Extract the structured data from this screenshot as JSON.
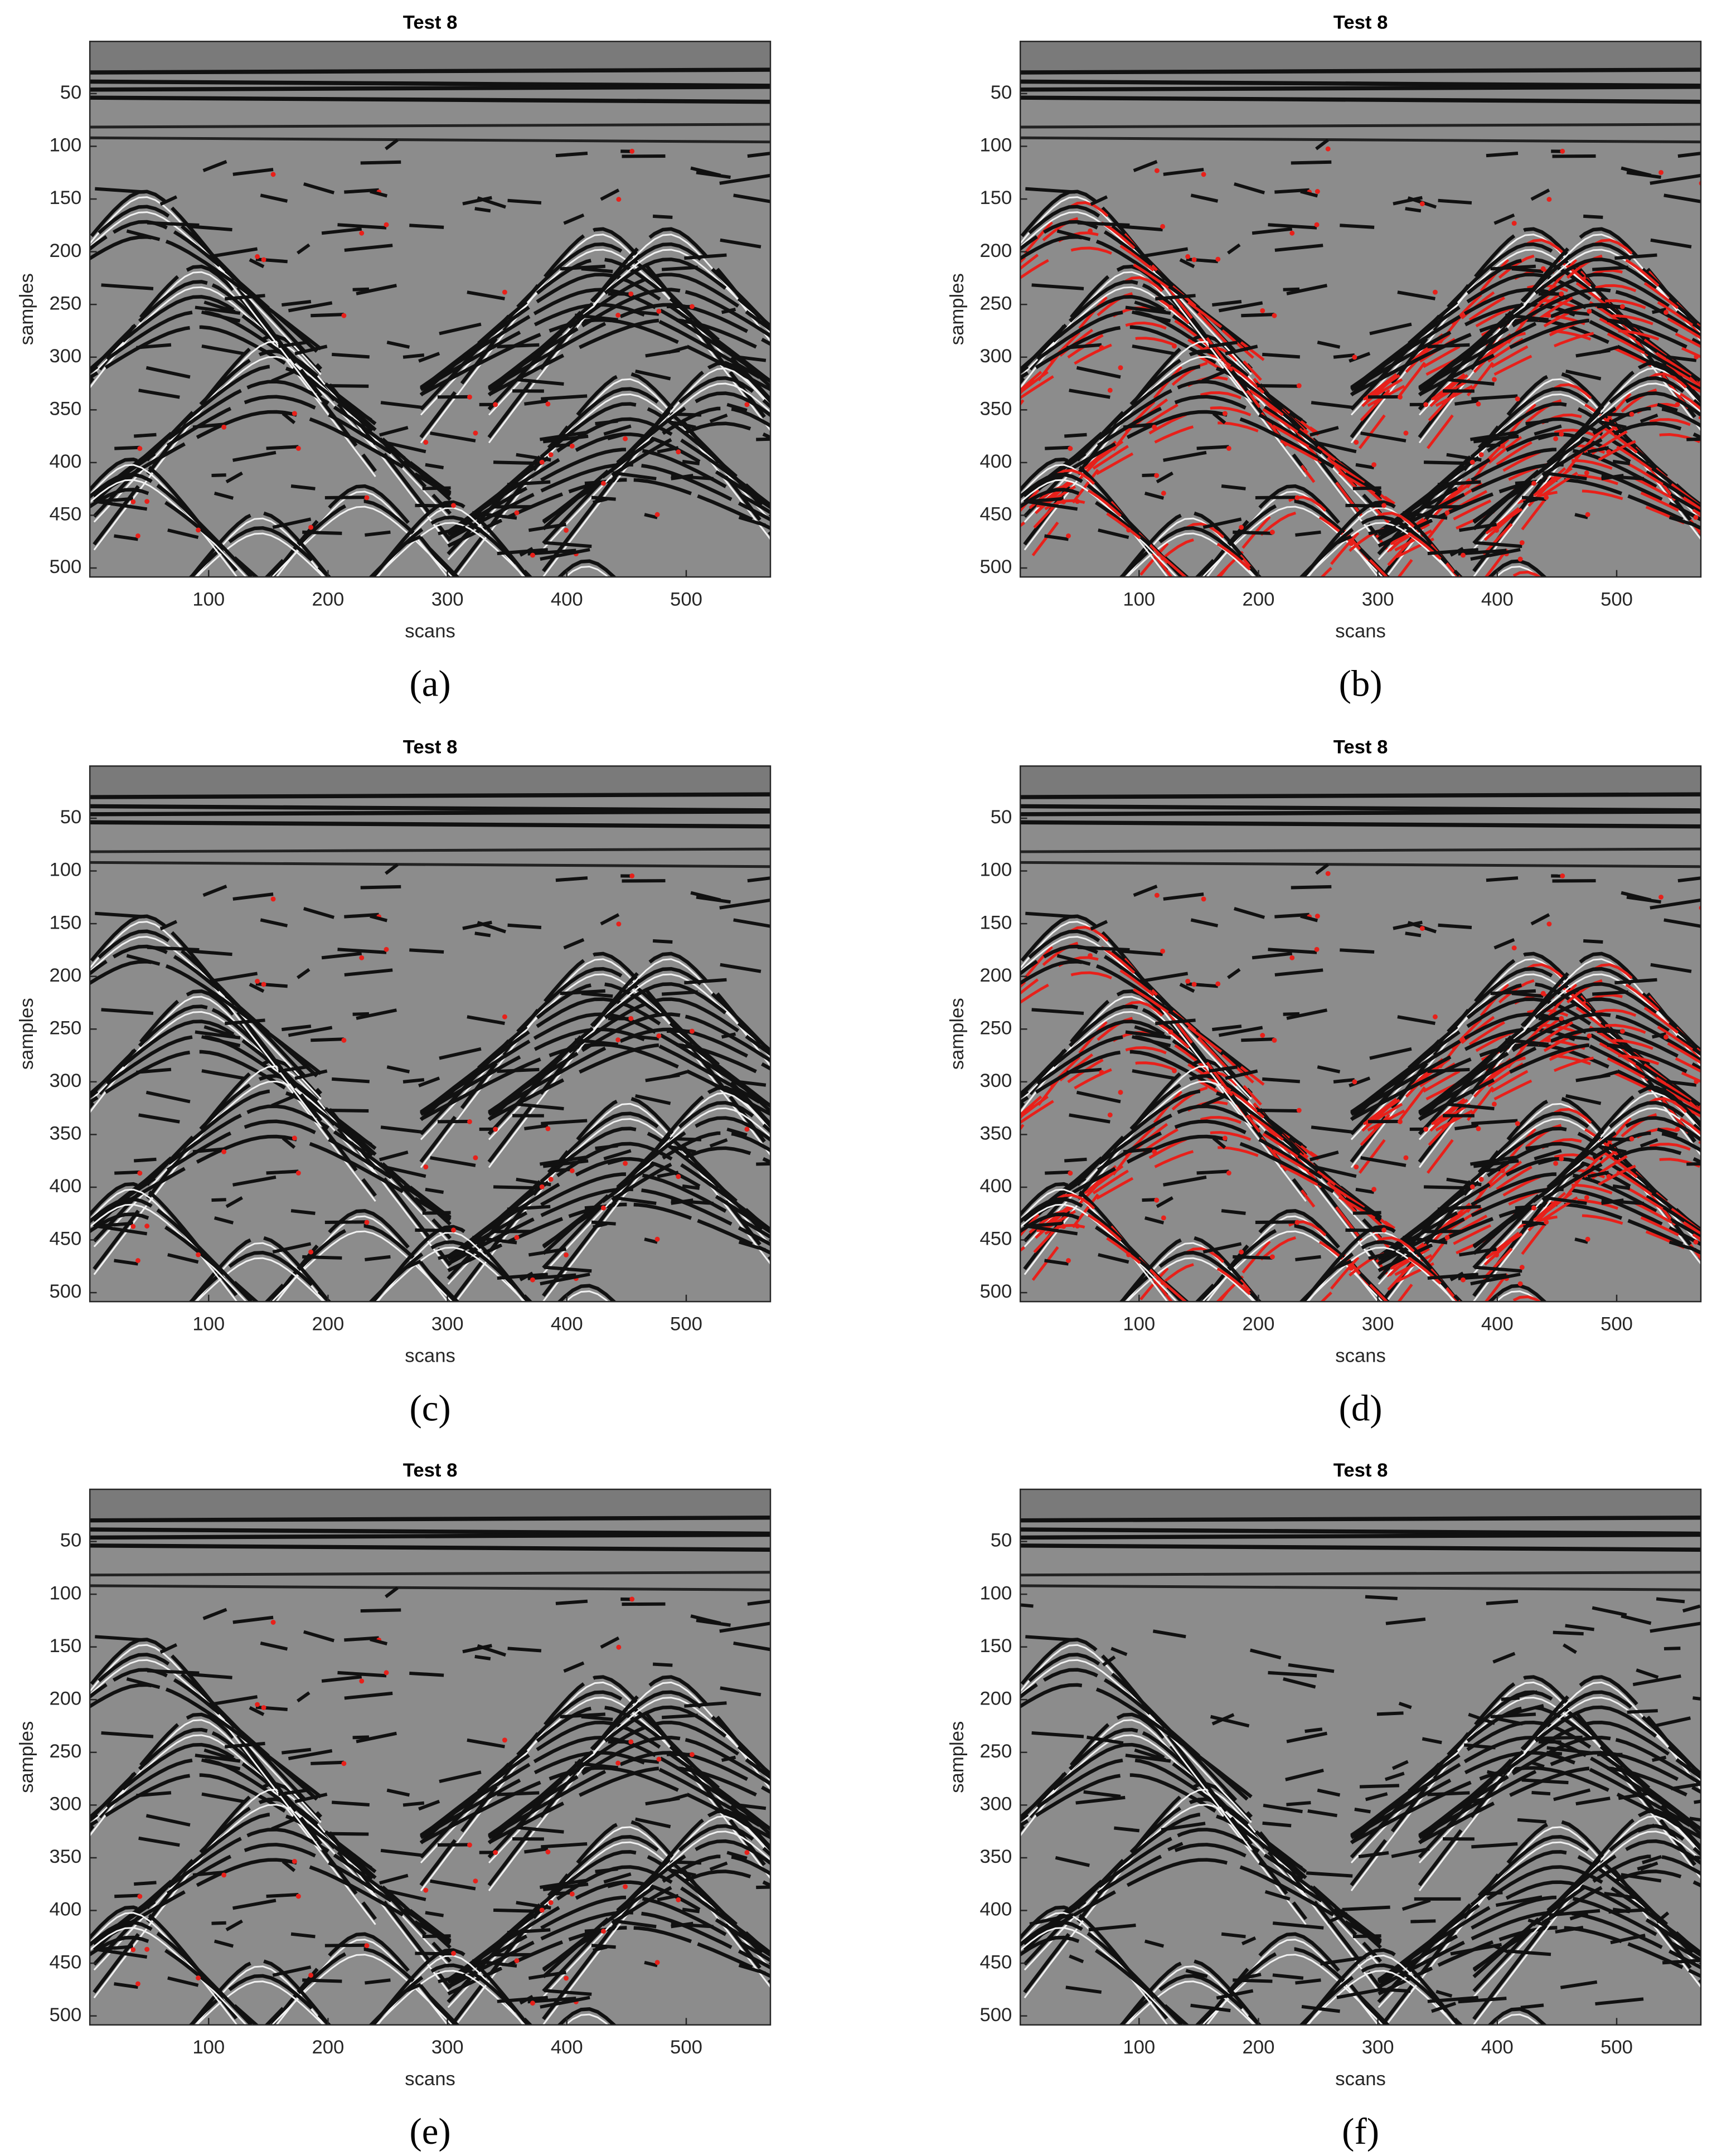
{
  "chart_data": [
    {
      "type": "image",
      "title": "Test 8",
      "xlabel": "scans",
      "ylabel": "samples",
      "caption": "(a)",
      "xlim": [
        0.5,
        570.5
      ],
      "ylim": [
        0.5,
        508.5
      ],
      "y_reversed": true,
      "xticks": [
        100,
        200,
        300,
        400,
        500
      ],
      "yticks": [
        50,
        100,
        150,
        200,
        250,
        300,
        350,
        400,
        450,
        500
      ]
    },
    {
      "type": "image",
      "title": "Test 8",
      "xlabel": "scans",
      "ylabel": "samples",
      "caption": "(b)",
      "xlim": [
        0.5,
        570.5
      ],
      "ylim": [
        0.5,
        508.5
      ],
      "y_reversed": true,
      "xticks": [
        100,
        200,
        300,
        400,
        500
      ],
      "yticks": [
        50,
        100,
        150,
        200,
        250,
        300,
        350,
        400,
        450,
        500
      ]
    },
    {
      "type": "image",
      "title": "Test 8",
      "xlabel": "scans",
      "ylabel": "samples",
      "caption": "(c)",
      "xlim": [
        0.5,
        570.5
      ],
      "ylim": [
        0.5,
        508.5
      ],
      "y_reversed": true,
      "xticks": [
        100,
        200,
        300,
        400,
        500
      ],
      "yticks": [
        50,
        100,
        150,
        200,
        250,
        300,
        350,
        400,
        450,
        500
      ]
    },
    {
      "type": "image",
      "title": "Test 8",
      "xlabel": "scans",
      "ylabel": "samples",
      "caption": "(d)",
      "xlim": [
        0.5,
        570.5
      ],
      "ylim": [
        0.5,
        508.5
      ],
      "y_reversed": true,
      "xticks": [
        100,
        200,
        300,
        400,
        500
      ],
      "yticks": [
        50,
        100,
        150,
        200,
        250,
        300,
        350,
        400,
        450,
        500
      ]
    },
    {
      "type": "image",
      "title": "Test 8",
      "xlabel": "scans",
      "ylabel": "samples",
      "caption": "(e)",
      "xlim": [
        0.5,
        570.5
      ],
      "ylim": [
        0.5,
        508.5
      ],
      "y_reversed": true,
      "xticks": [
        100,
        200,
        300,
        400,
        500
      ],
      "yticks": [
        50,
        100,
        150,
        200,
        250,
        300,
        350,
        400,
        450,
        500
      ]
    },
    {
      "type": "image",
      "title": "Test 8",
      "xlabel": "scans",
      "ylabel": "samples",
      "caption": "(f)",
      "xlim": [
        0.5,
        570.5
      ],
      "ylim": [
        0.5,
        508.5
      ],
      "y_reversed": true,
      "xticks": [
        100,
        200,
        300,
        400,
        500
      ],
      "yticks": [
        50,
        100,
        150,
        200,
        250,
        300,
        350,
        400,
        450,
        500
      ]
    }
  ]
}
